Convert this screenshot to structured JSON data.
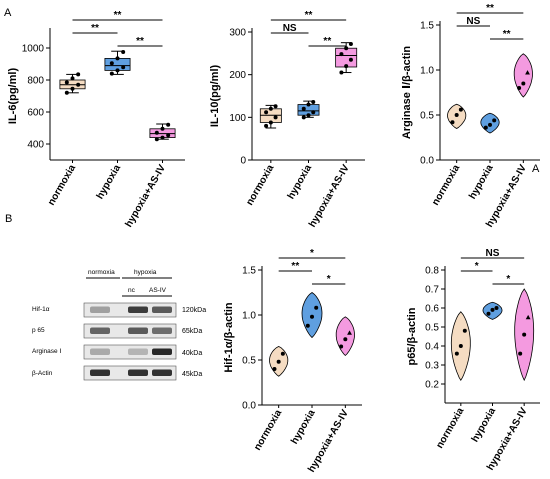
{
  "panel_letters": {
    "a": "A",
    "b": "B",
    "stray": "A"
  },
  "chart_data": [
    {
      "type": "box",
      "ylabel": "IL-6(pg/ml)",
      "ylim": [
        300,
        1100
      ],
      "yticks": [
        400,
        600,
        800,
        1000
      ],
      "categories": [
        "normoxia",
        "hypoxia",
        "hypoxia+AS-IV"
      ],
      "colors": [
        "#f5dcc2",
        "#5f9fe0",
        "#f49ae0"
      ],
      "boxes": [
        {
          "min": 720,
          "q1": 745,
          "median": 770,
          "q3": 800,
          "max": 835
        },
        {
          "min": 835,
          "q1": 860,
          "median": 890,
          "q3": 935,
          "max": 980
        },
        {
          "min": 430,
          "q1": 440,
          "median": 465,
          "q3": 495,
          "max": 525
        }
      ],
      "points": [
        [
          720,
          745,
          770,
          785,
          810,
          835
        ],
        [
          840,
          860,
          880,
          905,
          935,
          975
        ],
        [
          430,
          440,
          455,
          470,
          495,
          520
        ]
      ],
      "comparisons": [
        {
          "from": 0,
          "to": 1,
          "label": "**"
        },
        {
          "from": 1,
          "to": 2,
          "label": "**"
        },
        {
          "from": 0,
          "to": 2,
          "label": "**"
        }
      ]
    },
    {
      "type": "box",
      "ylabel": "IL-10(pg/ml)",
      "ylim": [
        0,
        300
      ],
      "yticks": [
        0,
        100,
        200,
        300
      ],
      "categories": [
        "normoxia",
        "hypoxia",
        "hypoxia+AS-IV"
      ],
      "colors": [
        "#f5dcc2",
        "#5f9fe0",
        "#f49ae0"
      ],
      "boxes": [
        {
          "min": 75,
          "q1": 88,
          "median": 105,
          "q3": 120,
          "max": 128
        },
        {
          "min": 100,
          "q1": 105,
          "median": 115,
          "q3": 130,
          "max": 138
        },
        {
          "min": 205,
          "q1": 218,
          "median": 245,
          "q3": 262,
          "max": 275
        }
      ],
      "points": [
        [
          80,
          88,
          100,
          112,
          120,
          126
        ],
        [
          100,
          105,
          112,
          120,
          130,
          136
        ],
        [
          205,
          220,
          235,
          248,
          262,
          272
        ]
      ],
      "comparisons": [
        {
          "from": 0,
          "to": 1,
          "label": "NS"
        },
        {
          "from": 0,
          "to": 2,
          "label": "**"
        },
        {
          "from": 1,
          "to": 2,
          "label": "**"
        }
      ]
    },
    {
      "type": "violin",
      "ylabel": "Arginase Ⅰ/β-actin",
      "ylim": [
        0,
        1.5
      ],
      "yticks": [
        0.0,
        0.5,
        1.0,
        1.5
      ],
      "categories": [
        "normoxia",
        "hypoxia",
        "hypoxia+AS-IV"
      ],
      "colors": [
        "#f5dcc2",
        "#5f9fe0",
        "#f49ae0"
      ],
      "violins": [
        {
          "min": 0.35,
          "max": 0.62,
          "width": 0.55
        },
        {
          "min": 0.3,
          "max": 0.52,
          "width": 0.55
        },
        {
          "min": 0.7,
          "max": 1.18,
          "width": 0.55
        }
      ],
      "points": [
        [
          0.42,
          0.5,
          0.56
        ],
        [
          0.36,
          0.39,
          0.44
        ],
        [
          0.8,
          0.85,
          0.97
        ]
      ],
      "comparisons": [
        {
          "from": 0,
          "to": 1,
          "label": "NS"
        },
        {
          "from": 0,
          "to": 2,
          "label": "**"
        },
        {
          "from": 1,
          "to": 2,
          "label": "**"
        }
      ]
    },
    {
      "type": "violin",
      "ylabel": "Hif-1α/β-actin",
      "ylim": [
        0,
        1.5
      ],
      "yticks": [
        0.0,
        0.5,
        1.0,
        1.5
      ],
      "categories": [
        "normoxia",
        "hypoxia",
        "hypoxia+AS-IV"
      ],
      "colors": [
        "#f5dcc2",
        "#5f9fe0",
        "#f49ae0"
      ],
      "violins": [
        {
          "min": 0.32,
          "max": 0.65,
          "width": 0.55
        },
        {
          "min": 0.75,
          "max": 1.25,
          "width": 0.6
        },
        {
          "min": 0.55,
          "max": 0.98,
          "width": 0.55
        }
      ],
      "points": [
        [
          0.4,
          0.48,
          0.57
        ],
        [
          0.88,
          0.98,
          1.08
        ],
        [
          0.65,
          0.73,
          0.8
        ]
      ],
      "comparisons": [
        {
          "from": 0,
          "to": 1,
          "label": "**"
        },
        {
          "from": 0,
          "to": 2,
          "label": "*"
        },
        {
          "from": 1,
          "to": 2,
          "label": "*"
        }
      ]
    },
    {
      "type": "violin",
      "ylabel": "p65/β-actin",
      "ylim": [
        0.1,
        0.8
      ],
      "yticks": [
        0.2,
        0.3,
        0.4,
        0.5,
        0.6,
        0.7,
        0.8
      ],
      "categories": [
        "normoxia",
        "hypoxia",
        "hypoxia+AS-IV"
      ],
      "colors": [
        "#f5dcc2",
        "#5f9fe0",
        "#f49ae0"
      ],
      "violins": [
        {
          "min": 0.22,
          "max": 0.58,
          "width": 0.6
        },
        {
          "min": 0.54,
          "max": 0.63,
          "width": 0.6
        },
        {
          "min": 0.22,
          "max": 0.7,
          "width": 0.6
        }
      ],
      "points": [
        [
          0.36,
          0.4,
          0.48
        ],
        [
          0.57,
          0.59,
          0.6
        ],
        [
          0.36,
          0.46,
          0.55
        ]
      ],
      "comparisons": [
        {
          "from": 0,
          "to": 1,
          "label": "*"
        },
        {
          "from": 0,
          "to": 2,
          "label": "NS"
        },
        {
          "from": 1,
          "to": 2,
          "label": "*"
        }
      ]
    }
  ],
  "western_blot": {
    "groups": [
      "normoxia",
      "hypoxia"
    ],
    "lanes": [
      "nc",
      "AS-IV"
    ],
    "proteins": [
      "Hif-1α",
      "p 65",
      "Arginase Ⅰ",
      "β-Actin"
    ],
    "sizes": [
      "120kDa",
      "65kDa",
      "40kDa",
      "45kDa"
    ],
    "intensity": [
      [
        0.35,
        0.85,
        0.7
      ],
      [
        0.65,
        0.7,
        0.6
      ],
      [
        0.3,
        0.25,
        0.95
      ],
      [
        0.9,
        0.9,
        0.9
      ]
    ]
  }
}
